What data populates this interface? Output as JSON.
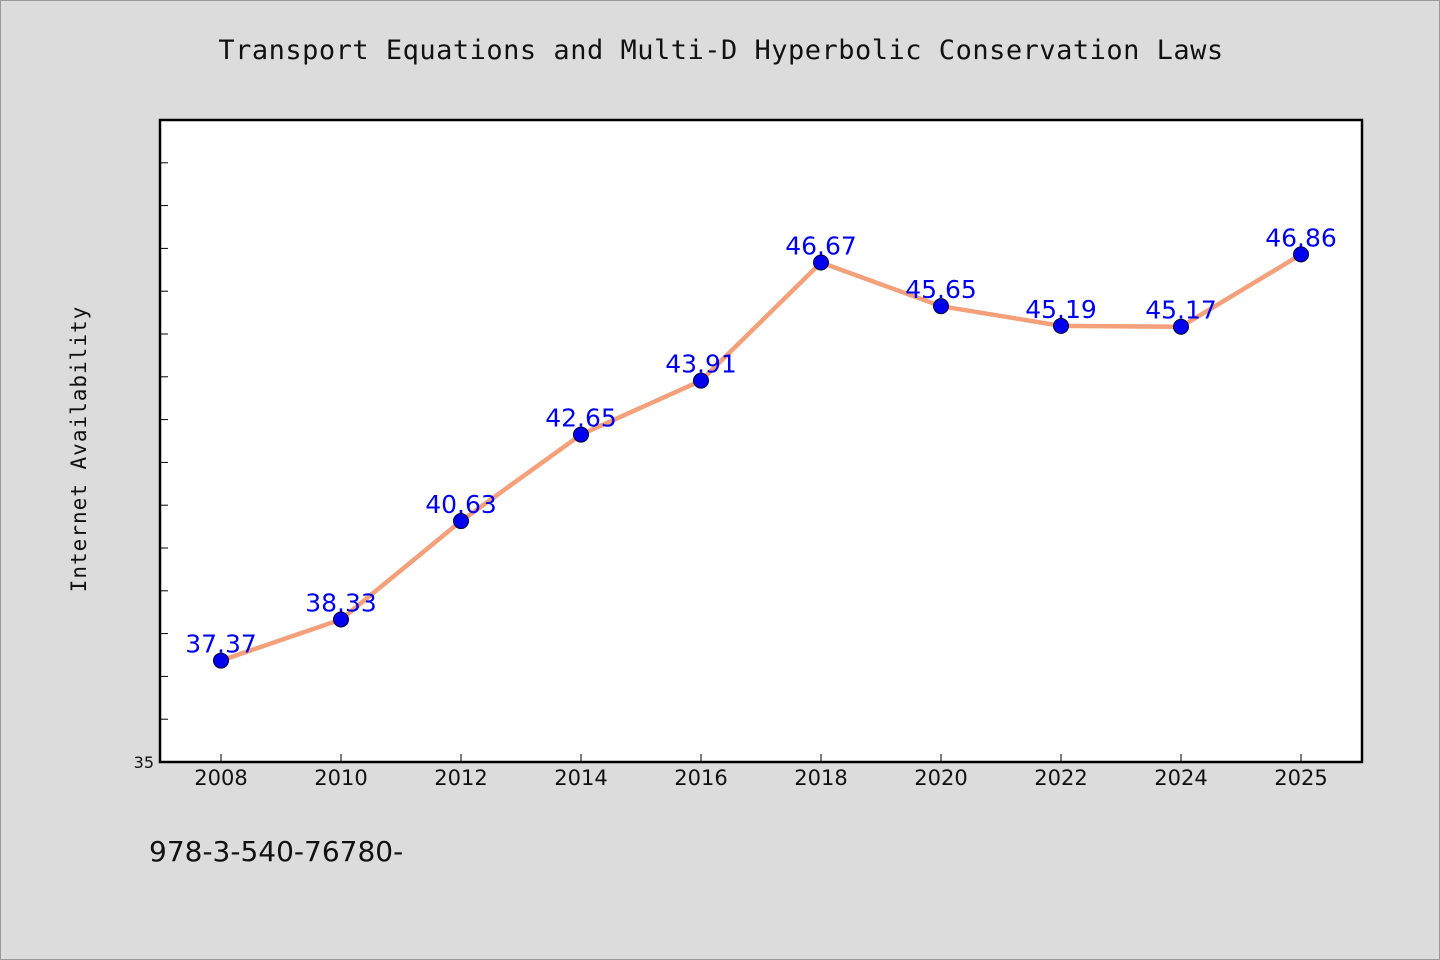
{
  "page": {
    "title": "Transport Equations and Multi-D Hyperbolic Conservation Laws",
    "footnote": "978-3-540-76780-"
  },
  "chart_data": {
    "type": "line",
    "title": "Transport Equations and Multi-D Hyperbolic Conservation Laws",
    "xlabel": "",
    "ylabel": "Internet Availability",
    "categories": [
      "2008",
      "2010",
      "2012",
      "2014",
      "2016",
      "2018",
      "2020",
      "2022",
      "2024",
      "2025"
    ],
    "series": [
      {
        "values": [
          37.37,
          38.33,
          40.63,
          42.65,
          43.91,
          46.67,
          45.65,
          45.19,
          45.17,
          46.86
        ],
        "line_color": "#f4a07a",
        "marker_color": "#0000ee",
        "label_color": "#0000ee"
      }
    ],
    "data_labels": [
      "37.37",
      "38.33",
      "40.63",
      "42.65",
      "43.91",
      "46.67",
      "45.65",
      "45.19",
      "45.17",
      "46.86"
    ],
    "y_tick_labels": [
      "35"
    ],
    "ylim": [
      35,
      50
    ],
    "grid": false,
    "legend": "none"
  }
}
